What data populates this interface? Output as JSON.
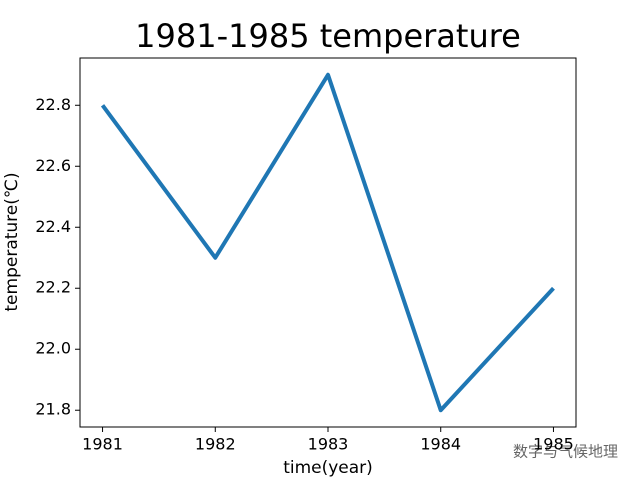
{
  "chart_data": {
    "type": "line",
    "title": "1981-1985 temperature",
    "x_label": "time(year)",
    "y_label": "temperature(℃)",
    "x": [
      1981,
      1982,
      1983,
      1984,
      1985
    ],
    "series": [
      {
        "name": "temperature",
        "color": "#1f77b4",
        "values": [
          22.8,
          22.3,
          22.9,
          21.8,
          22.2
        ]
      }
    ],
    "xlim": [
      1980.8,
      1985.2
    ],
    "xticks": [
      1981,
      1982,
      1983,
      1984,
      1985
    ],
    "ylim": [
      21.745,
      22.955
    ],
    "yticks": [
      21.8,
      {
        "value": 22.0,
        "label": "22.0"
      },
      22.2,
      22.4,
      22.6,
      22.8
    ],
    "grid": false,
    "watermark": "数字与气候地理"
  }
}
